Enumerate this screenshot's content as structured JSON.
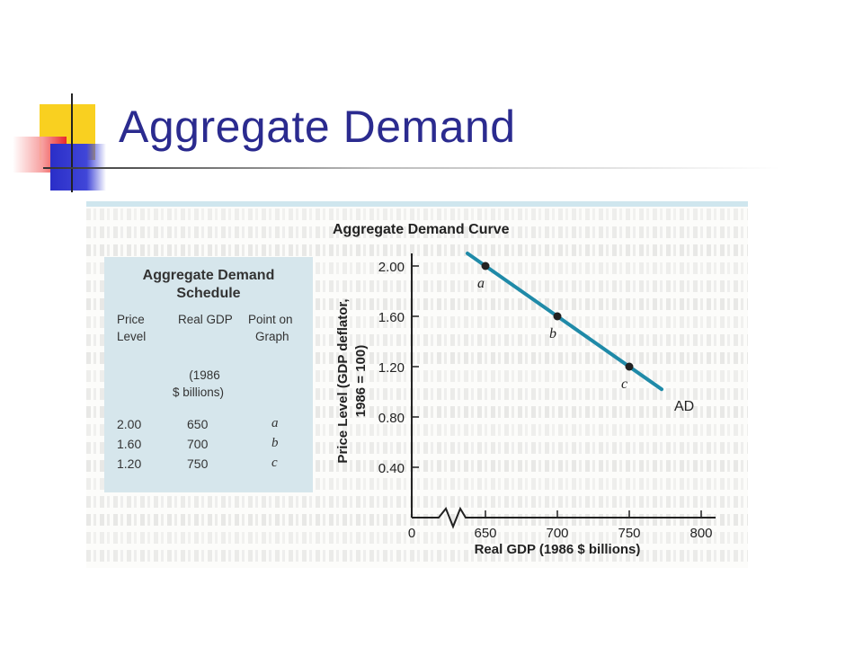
{
  "slide": {
    "title": "Aggregate Demand"
  },
  "schedule": {
    "title_line1": "Aggregate Demand",
    "title_line2": "Schedule",
    "headers": {
      "price_line1": "Price",
      "price_line2": "Level",
      "gdp_line1": "Real GDP",
      "gdp_line2": "(1986",
      "gdp_line3": "$ billions)",
      "point_line1": "Point on",
      "point_line2": "Graph"
    },
    "rows": [
      {
        "price": "2.00",
        "gdp": "650",
        "point": "a"
      },
      {
        "price": "1.60",
        "gdp": "700",
        "point": "b"
      },
      {
        "price": "1.20",
        "gdp": "750",
        "point": "c"
      }
    ]
  },
  "chart_data": {
    "type": "line",
    "title": "Aggregate Demand Curve",
    "xlabel": "Real GDP (1986 $ billions)",
    "ylabel_line1": "Price Level (GDP deflator,",
    "ylabel_line2": "1986 = 100)",
    "x_ticks": [
      "0",
      "650",
      "700",
      "750",
      "800"
    ],
    "y_ticks": [
      "2.00",
      "1.60",
      "1.20",
      "0.80",
      "0.40"
    ],
    "xlim": [
      625,
      800
    ],
    "ylim": [
      0,
      2.0
    ],
    "axis_break": true,
    "curve_label": "AD",
    "line": {
      "x_start": 637.5,
      "y_start": 2.1,
      "x_end": 772.5,
      "y_end": 1.02
    },
    "points": [
      {
        "label": "a",
        "x": 650,
        "y": 2.0
      },
      {
        "label": "b",
        "x": 700,
        "y": 1.6
      },
      {
        "label": "c",
        "x": 750,
        "y": 1.2
      }
    ],
    "line_color": "#1f8aa8"
  }
}
